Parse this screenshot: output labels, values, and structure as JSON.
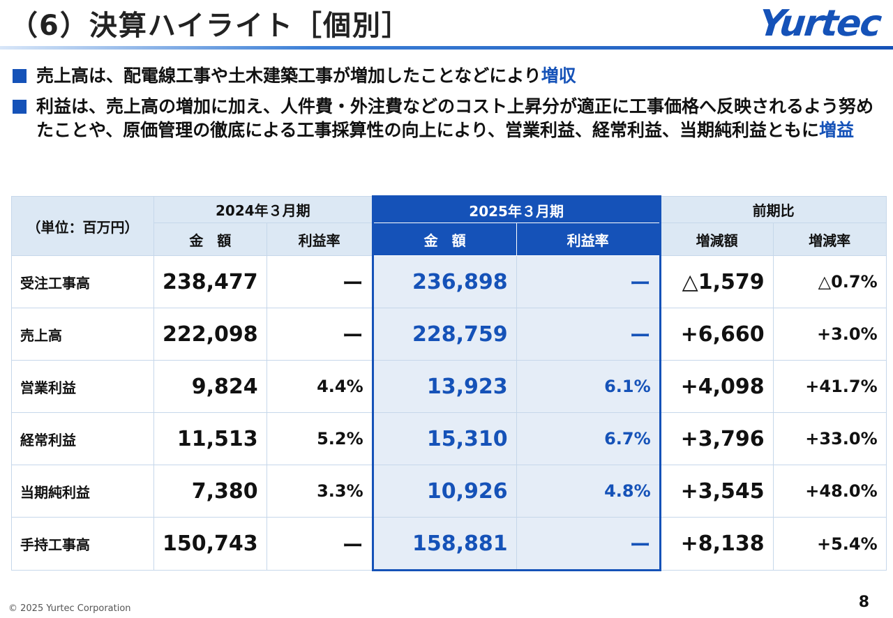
{
  "header": {
    "title": "（6）決算ハイライト［個別］",
    "logo": "Yurtec"
  },
  "bullets": [
    {
      "text": "売上高は、配電線工事や土木建築工事が増加したことなどにより",
      "highlight": "増収"
    },
    {
      "text": "利益は、売上高の増加に加え、人件費・外注費などのコスト上昇分が適正に工事価格へ反映されるよう努めたことや、原価管理の徹底による工事採算性の向上により、営業利益、経常利益、当期純利益ともに",
      "highlight": "増益"
    }
  ],
  "table": {
    "unit_label": "（単位：百万円）",
    "periods": {
      "prev": "2024年３月期",
      "curr": "2025年３月期",
      "diff": "前期比"
    },
    "subheaders": {
      "amount": "金　額",
      "margin": "利益率",
      "change_amount": "増減額",
      "change_rate": "増減率"
    },
    "rows": [
      {
        "label": "受注工事高",
        "prev_amount": "238,477",
        "prev_margin": "ー",
        "curr_amount": "236,898",
        "curr_margin": "ー",
        "change_amount": "△1,579",
        "change_rate": "△0.7%"
      },
      {
        "label": "売上高",
        "prev_amount": "222,098",
        "prev_margin": "ー",
        "curr_amount": "228,759",
        "curr_margin": "ー",
        "change_amount": "+6,660",
        "change_rate": "+3.0%"
      },
      {
        "label": "営業利益",
        "prev_amount": "9,824",
        "prev_margin": "4.4%",
        "curr_amount": "13,923",
        "curr_margin": "6.1%",
        "change_amount": "+4,098",
        "change_rate": "+41.7%"
      },
      {
        "label": "経常利益",
        "prev_amount": "11,513",
        "prev_margin": "5.2%",
        "curr_amount": "15,310",
        "curr_margin": "6.7%",
        "change_amount": "+3,796",
        "change_rate": "+33.0%"
      },
      {
        "label": "当期純利益",
        "prev_amount": "7,380",
        "prev_margin": "3.3%",
        "curr_amount": "10,926",
        "curr_margin": "4.8%",
        "change_amount": "+3,545",
        "change_rate": "+48.0%"
      },
      {
        "label": "手持工事高",
        "prev_amount": "150,743",
        "prev_margin": "ー",
        "curr_amount": "158,881",
        "curr_margin": "ー",
        "change_amount": "+8,138",
        "change_rate": "+5.4%"
      }
    ]
  },
  "footer": {
    "copyright": "© 2025 Yurtec Corporation",
    "page_number": "8"
  },
  "colors": {
    "accent": "#1552b8",
    "header_bg": "#dce8f4",
    "highlight_col_bg": "#e5edf7"
  }
}
